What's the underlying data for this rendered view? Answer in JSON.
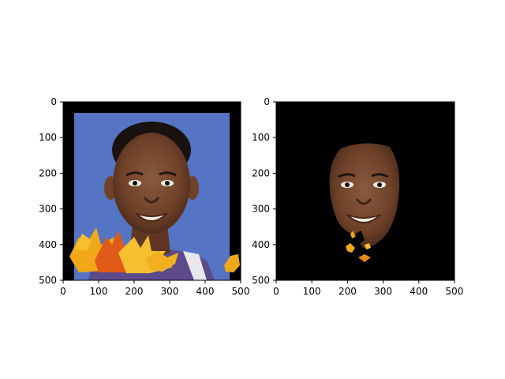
{
  "figure": {
    "background": "#ffffff",
    "axis_color": "#000000"
  },
  "chart_data": [
    {
      "type": "image",
      "xlim": [
        0,
        500
      ],
      "ylim": [
        500,
        0
      ],
      "x_ticks": [
        "0",
        "100",
        "200",
        "300",
        "400",
        "500"
      ],
      "y_ticks": [
        "0",
        "100",
        "200",
        "300",
        "400",
        "500"
      ],
      "content": {
        "description_colors": {
          "frame": "#000000",
          "backdrop": "#5674c4",
          "skin": "#7a4a33",
          "leaves": [
            "#f0a818",
            "#e05a18",
            "#f6c030"
          ]
        },
        "photo_region": {
          "x": [
            30,
            470
          ],
          "y": [
            30,
            500
          ]
        }
      }
    },
    {
      "type": "image",
      "xlim": [
        0,
        500
      ],
      "ylim": [
        500,
        0
      ],
      "x_ticks": [
        "0",
        "100",
        "200",
        "300",
        "400",
        "500"
      ],
      "y_ticks": [
        "0",
        "100",
        "200",
        "300",
        "400",
        "500"
      ],
      "content": {
        "description_colors": {
          "background": "#000000",
          "skin": "#7a4a33",
          "leaves": [
            "#f0a818",
            "#e08a18"
          ]
        },
        "face_region": {
          "x": [
            150,
            350
          ],
          "y": [
            110,
            410
          ]
        }
      }
    }
  ]
}
